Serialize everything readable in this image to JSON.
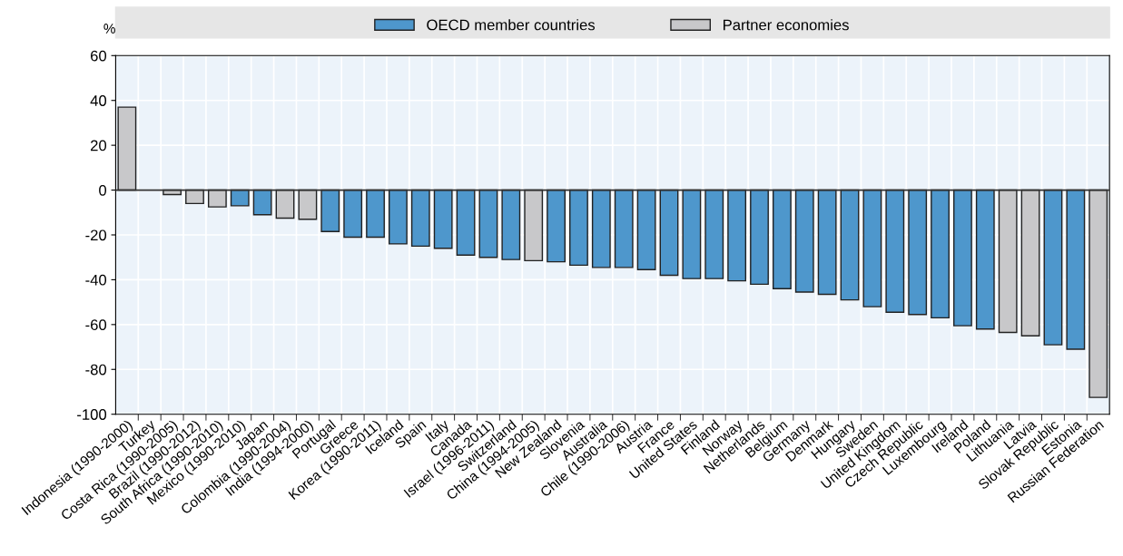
{
  "chart_data": {
    "type": "bar",
    "ylabel": "%",
    "categories": [
      "Indonesia (1990-2000)",
      "Turkey",
      "Costa Rica (1990-2005)",
      "Brazil (1990-2012)",
      "South Africa (1990-2010)",
      "Mexico (1990-2010)",
      "Japan",
      "Colombia (1990-2004)",
      "India (1994-2000)",
      "Portugal",
      "Greece",
      "Korea (1990-2011)",
      "Iceland",
      "Spain",
      "Italy",
      "Canada",
      "Israel (1996-2011)",
      "Switzerland",
      "China (1994-2005)",
      "New Zealand",
      "Slovenia",
      "Australia",
      "Chile (1990-2006)",
      "Austria",
      "France",
      "United States",
      "Finland",
      "Norway",
      "Netherlands",
      "Belgium",
      "Germany",
      "Denmark",
      "Hungary",
      "Sweden",
      "United Kingdom",
      "Czech Republic",
      "Luxembourg",
      "Ireland",
      "Poland",
      "Lithuania",
      "Latvia",
      "Slovak Republic",
      "Estonia",
      "Russian Federation"
    ],
    "series": [
      {
        "name": "OECD member countries",
        "color": "#4e97cc",
        "values": [
          null,
          null,
          null,
          null,
          null,
          -7,
          -11,
          null,
          null,
          -18.5,
          -21,
          -21,
          -24,
          -25,
          -26,
          -29,
          -30,
          -31,
          null,
          -32,
          -33.5,
          -34.5,
          -34.5,
          -35.5,
          -38,
          -39.5,
          -39.5,
          -40.5,
          -42,
          -44,
          -45.5,
          -46.5,
          -49,
          -52,
          -54.5,
          -55.5,
          -57,
          -60.5,
          -62,
          null,
          null,
          -69,
          -71,
          null
        ]
      },
      {
        "name": "Partner economies",
        "color": "#c8c8ca",
        "values": [
          37,
          null,
          -2,
          -6,
          -7.5,
          null,
          null,
          -12.5,
          -13,
          null,
          null,
          null,
          null,
          null,
          null,
          null,
          null,
          null,
          -31.5,
          null,
          null,
          null,
          null,
          null,
          null,
          null,
          null,
          null,
          null,
          null,
          null,
          null,
          null,
          null,
          null,
          null,
          null,
          null,
          null,
          -63.5,
          -65,
          null,
          null,
          -92.5
        ]
      }
    ],
    "ylim": [
      -100,
      60
    ],
    "yticks": [
      -100,
      -80,
      -60,
      -40,
      -20,
      0,
      20,
      40,
      60
    ],
    "grid": true,
    "legend": "top"
  }
}
